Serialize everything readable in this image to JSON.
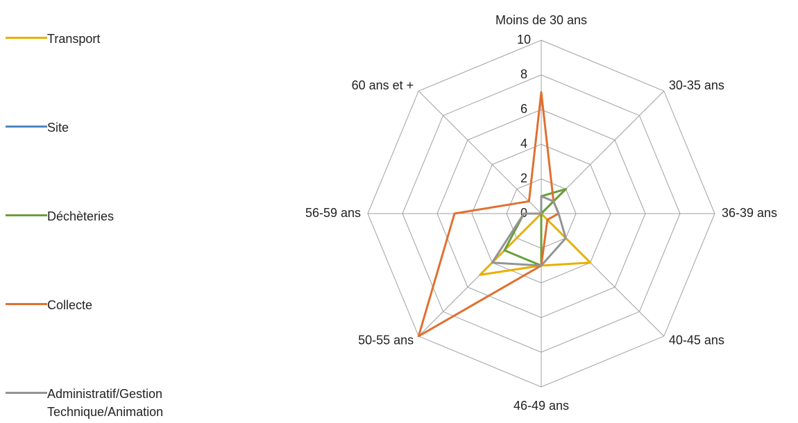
{
  "chart_data": {
    "type": "radar",
    "categories": [
      "Moins de 30 ans",
      "30-35 ans",
      "36-39 ans",
      "40-45 ans",
      "46-49 ans",
      "50-55 ans",
      "56-59 ans",
      "60 ans et +"
    ],
    "series": [
      {
        "name": "Transport",
        "color": "#e8b000",
        "values": [
          0,
          0,
          0,
          4,
          3,
          5,
          0,
          0
        ]
      },
      {
        "name": "Site",
        "color": "#4f87c0",
        "values": [
          0,
          2,
          0,
          0,
          2,
          0,
          0,
          0
        ]
      },
      {
        "name": "Déchèteries",
        "color": "#6a9f3a",
        "values": [
          1,
          2,
          0,
          0,
          3,
          3,
          1,
          0
        ]
      },
      {
        "name": "Collecte",
        "color": "#e07030",
        "values": [
          7,
          1,
          1,
          0.5,
          3,
          10,
          5,
          1
        ]
      },
      {
        "name": "Administratif/Gestion Technique/Animation",
        "color": "#949494",
        "values": [
          1,
          1,
          1,
          2,
          3,
          4,
          1,
          0
        ]
      }
    ],
    "rlim": [
      0,
      10
    ],
    "rticks": [
      0,
      2,
      4,
      6,
      8,
      10
    ],
    "grid": true,
    "legend": "left"
  }
}
